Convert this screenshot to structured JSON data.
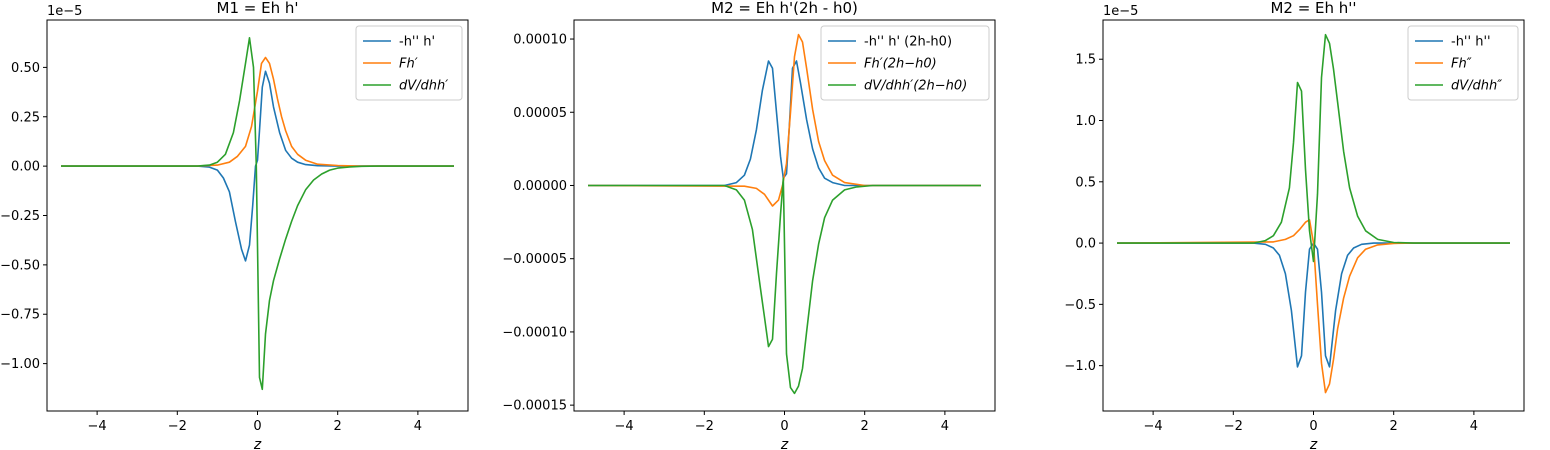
{
  "chart_data": [
    {
      "type": "line",
      "title": "M1 = Eh h'",
      "xlabel": "z",
      "ylabel": "",
      "offset_text": "1e−5",
      "xlim": [
        -5.25,
        5.25
      ],
      "ylim": [
        -1.24,
        0.74
      ],
      "xticks": [
        -4,
        -2,
        0,
        2,
        4
      ],
      "xtick_labels": [
        "−4",
        "−2",
        "0",
        "2",
        "4"
      ],
      "yticks": [
        -1.0,
        -0.75,
        -0.5,
        -0.25,
        0.0,
        0.25,
        0.5
      ],
      "ytick_labels": [
        "−1.00",
        "−0.75",
        "−0.50",
        "−0.25",
        "0.00",
        "0.25",
        "0.50"
      ],
      "legend_position": "top-right",
      "series": [
        {
          "name": "-h'' h'",
          "color": "#1f77b4",
          "x": [
            -4.9,
            -1.5,
            -1.2,
            -1.0,
            -0.85,
            -0.7,
            -0.55,
            -0.4,
            -0.3,
            -0.2,
            -0.12,
            -0.05,
            0.0,
            0.05,
            0.12,
            0.2,
            0.3,
            0.4,
            0.55,
            0.7,
            0.85,
            1.0,
            1.2,
            1.5,
            2.0,
            4.9
          ],
          "y": [
            0.0,
            0.0,
            -0.005,
            -0.02,
            -0.06,
            -0.13,
            -0.28,
            -0.42,
            -0.48,
            -0.4,
            -0.2,
            0.0,
            0.03,
            0.18,
            0.4,
            0.48,
            0.42,
            0.3,
            0.17,
            0.08,
            0.04,
            0.02,
            0.008,
            0.002,
            0.0,
            0.0
          ]
        },
        {
          "name": "Fh′",
          "color": "#ff7f0e",
          "x": [
            -4.9,
            -1.5,
            -1.0,
            -0.7,
            -0.5,
            -0.3,
            -0.15,
            0.0,
            0.1,
            0.2,
            0.3,
            0.4,
            0.5,
            0.6,
            0.7,
            0.85,
            1.0,
            1.2,
            1.5,
            2.0,
            2.5,
            4.9
          ],
          "y": [
            0.0,
            0.0,
            0.005,
            0.02,
            0.05,
            0.1,
            0.2,
            0.38,
            0.52,
            0.55,
            0.52,
            0.44,
            0.34,
            0.25,
            0.18,
            0.1,
            0.06,
            0.03,
            0.01,
            0.003,
            0.0,
            0.0
          ]
        },
        {
          "name": "dV/dhh′",
          "color": "#2ca02c",
          "x": [
            -4.9,
            -1.5,
            -1.2,
            -1.0,
            -0.8,
            -0.6,
            -0.45,
            -0.3,
            -0.2,
            -0.1,
            -0.03,
            0.05,
            0.12,
            0.2,
            0.3,
            0.4,
            0.55,
            0.7,
            0.85,
            1.0,
            1.2,
            1.4,
            1.6,
            1.8,
            2.0,
            2.3,
            2.6,
            3.0,
            4.9
          ],
          "y": [
            0.0,
            0.0,
            0.005,
            0.02,
            0.06,
            0.17,
            0.33,
            0.52,
            0.65,
            0.5,
            0.0,
            -1.07,
            -1.13,
            -0.85,
            -0.68,
            -0.58,
            -0.47,
            -0.37,
            -0.28,
            -0.2,
            -0.12,
            -0.07,
            -0.04,
            -0.02,
            -0.01,
            -0.004,
            -0.001,
            0.0,
            0.0
          ]
        }
      ]
    },
    {
      "type": "line",
      "title": "M2 = Eh h'(2h - h0)",
      "xlabel": "z",
      "ylabel": "",
      "offset_text": "",
      "xlim": [
        -5.25,
        5.25
      ],
      "ylim": [
        -0.000154,
        0.000113
      ],
      "xticks": [
        -4,
        -2,
        0,
        2,
        4
      ],
      "xtick_labels": [
        "−4",
        "−2",
        "0",
        "2",
        "4"
      ],
      "yticks": [
        -0.00015,
        -0.0001,
        -5e-05,
        0.0,
        5e-05,
        0.0001
      ],
      "ytick_labels": [
        "−0.00015",
        "−0.00010",
        "−0.00005",
        "0.00000",
        "0.00005",
        "0.00010"
      ],
      "legend_position": "top-right",
      "series": [
        {
          "name": "-h'' h' (2h-h0)",
          "color": "#1f77b4",
          "x": [
            -4.9,
            -1.5,
            -1.2,
            -1.0,
            -0.85,
            -0.7,
            -0.55,
            -0.4,
            -0.3,
            -0.2,
            -0.1,
            -0.03,
            0.05,
            0.12,
            0.2,
            0.3,
            0.4,
            0.55,
            0.7,
            0.85,
            1.0,
            1.2,
            1.5,
            2.0,
            4.9
          ],
          "y": [
            0.0,
            0.0,
            2e-06,
            7e-06,
            1.8e-05,
            3.8e-05,
            6.5e-05,
            8.5e-05,
            8e-05,
            5e-05,
            2e-05,
            5e-06,
            8e-06,
            4e-05,
            8e-05,
            8.5e-05,
            7e-05,
            4.5e-05,
            2.5e-05,
            1.2e-05,
            5e-06,
            2e-06,
            0.0,
            0.0,
            0.0
          ]
        },
        {
          "name": "Fh′(2h−h0)",
          "color": "#ff7f0e",
          "x": [
            -4.9,
            -1.0,
            -0.7,
            -0.5,
            -0.3,
            -0.15,
            -0.05,
            0.05,
            0.15,
            0.25,
            0.35,
            0.45,
            0.55,
            0.7,
            0.85,
            1.0,
            1.2,
            1.5,
            2.0,
            2.5,
            4.9
          ],
          "y": [
            0.0,
            -5e-07,
            -2e-06,
            -6e-06,
            -1.4e-05,
            -1e-05,
            0.0,
            1.5e-05,
            5e-05,
            8.8e-05,
            0.000103,
            9.8e-05,
            8e-05,
            5.2e-05,
            3e-05,
            1.7e-05,
            7e-06,
            2e-06,
            0.0,
            0.0,
            0.0
          ]
        },
        {
          "name": "dV/dhh′(2h−h0)",
          "color": "#2ca02c",
          "x": [
            -4.9,
            -1.5,
            -1.2,
            -1.0,
            -0.8,
            -0.6,
            -0.5,
            -0.4,
            -0.3,
            -0.2,
            -0.1,
            -0.03,
            0.05,
            0.15,
            0.25,
            0.35,
            0.45,
            0.55,
            0.7,
            0.85,
            1.0,
            1.2,
            1.5,
            1.8,
            2.2,
            2.6,
            3.0,
            4.9
          ],
          "y": [
            0.0,
            0.0,
            -3e-06,
            -1e-05,
            -3e-05,
            -7e-05,
            -9e-05,
            -0.00011,
            -0.000105,
            -6e-05,
            -2e-05,
            5e-06,
            -0.000115,
            -0.000138,
            -0.000142,
            -0.000137,
            -0.000125,
            -0.0001,
            -6.5e-05,
            -4e-05,
            -2.2e-05,
            -1e-05,
            -3e-06,
            -1e-06,
            0.0,
            0.0,
            0.0,
            0.0
          ]
        }
      ]
    },
    {
      "type": "line",
      "title": "M2 = Eh h''",
      "xlabel": "z",
      "ylabel": "",
      "offset_text": "1e−5",
      "xlim": [
        -5.25,
        5.25
      ],
      "ylim": [
        -1.37,
        1.82
      ],
      "xticks": [
        -4,
        -2,
        0,
        2,
        4
      ],
      "xtick_labels": [
        "−4",
        "−2",
        "0",
        "2",
        "4"
      ],
      "yticks": [
        -1.0,
        -0.5,
        0.0,
        0.5,
        1.0,
        1.5
      ],
      "ytick_labels": [
        "−1.0",
        "−0.5",
        "0.0",
        "0.5",
        "1.0",
        "1.5"
      ],
      "legend_position": "top-right",
      "series": [
        {
          "name": "-h'' h''",
          "color": "#1f77b4",
          "x": [
            -4.9,
            -1.5,
            -1.2,
            -1.0,
            -0.85,
            -0.7,
            -0.55,
            -0.4,
            -0.3,
            -0.2,
            -0.1,
            0.0,
            0.1,
            0.2,
            0.3,
            0.4,
            0.55,
            0.7,
            0.85,
            1.0,
            1.2,
            1.5,
            2.0,
            4.9
          ],
          "y": [
            0.0,
            0.0,
            -0.01,
            -0.04,
            -0.1,
            -0.25,
            -0.55,
            -1.01,
            -0.92,
            -0.4,
            -0.05,
            0.0,
            -0.05,
            -0.4,
            -0.92,
            -1.01,
            -0.55,
            -0.25,
            -0.1,
            -0.04,
            -0.01,
            0.0,
            0.0,
            0.0
          ]
        },
        {
          "name": "Fh″",
          "color": "#ff7f0e",
          "x": [
            -4.9,
            -1.0,
            -0.7,
            -0.5,
            -0.35,
            -0.2,
            -0.1,
            0.0,
            0.1,
            0.2,
            0.3,
            0.4,
            0.5,
            0.6,
            0.75,
            0.9,
            1.1,
            1.3,
            1.6,
            2.0,
            2.5,
            4.9
          ],
          "y": [
            0.0,
            0.01,
            0.03,
            0.06,
            0.11,
            0.17,
            0.19,
            0.0,
            -0.5,
            -0.98,
            -1.22,
            -1.15,
            -0.95,
            -0.7,
            -0.45,
            -0.27,
            -0.12,
            -0.05,
            -0.015,
            -0.003,
            0.0,
            0.0
          ]
        },
        {
          "name": "dV/dhh″",
          "color": "#2ca02c",
          "x": [
            -4.9,
            -1.5,
            -1.2,
            -1.0,
            -0.8,
            -0.6,
            -0.5,
            -0.4,
            -0.3,
            -0.2,
            -0.1,
            0.0,
            0.1,
            0.2,
            0.3,
            0.4,
            0.5,
            0.6,
            0.75,
            0.9,
            1.1,
            1.3,
            1.6,
            2.0,
            2.5,
            4.9
          ],
          "y": [
            0.0,
            0.0,
            0.02,
            0.06,
            0.17,
            0.45,
            0.82,
            1.31,
            1.24,
            0.6,
            0.1,
            -0.15,
            0.4,
            1.35,
            1.7,
            1.63,
            1.42,
            1.15,
            0.75,
            0.45,
            0.22,
            0.1,
            0.03,
            0.005,
            0.0,
            0.0
          ]
        }
      ]
    }
  ]
}
